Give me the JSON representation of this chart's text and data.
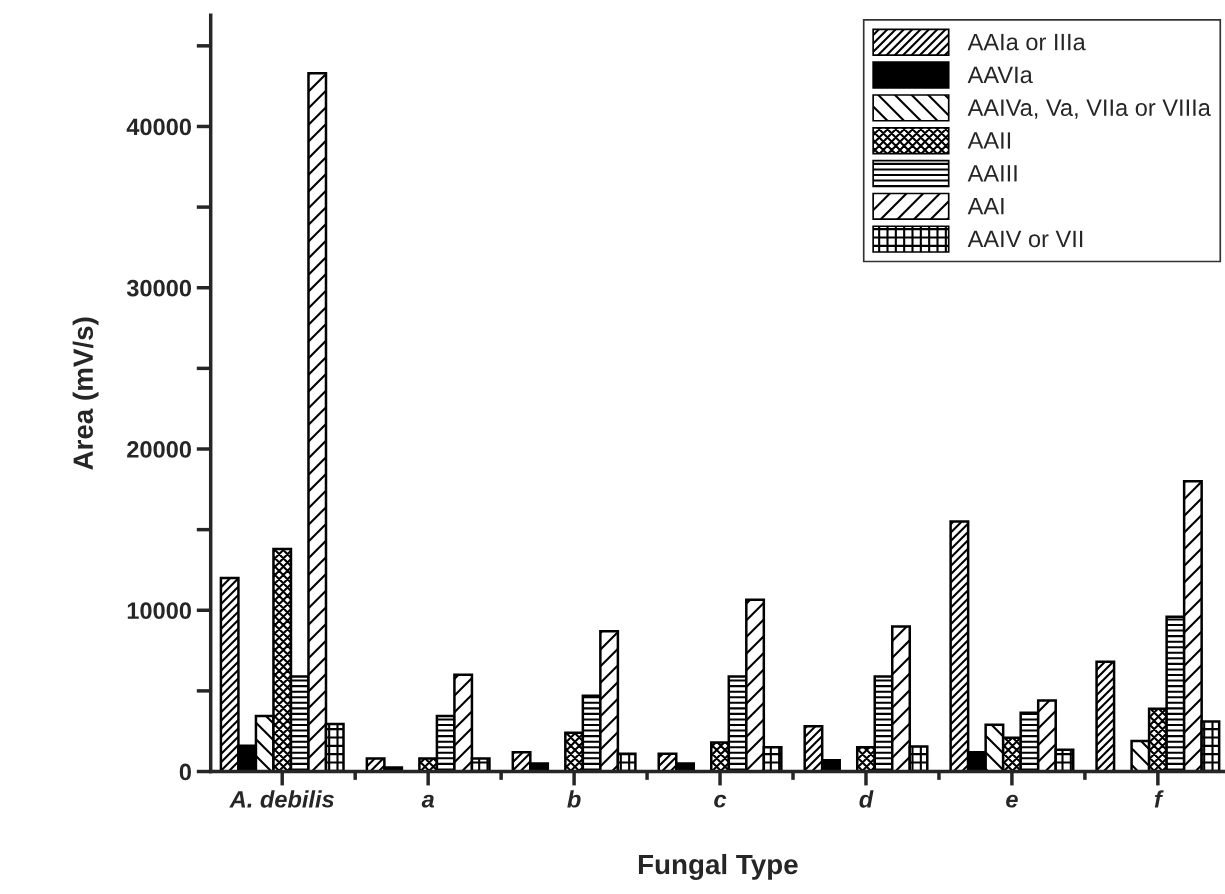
{
  "chart_data": {
    "type": "bar",
    "xlabel": "Fungal Type",
    "ylabel": "Area (mV/s)",
    "categories": [
      "A. debilis",
      "a",
      "b",
      "c",
      "d",
      "e",
      "f"
    ],
    "series": [
      {
        "name": "AAIa or IIIa",
        "color": "#000000",
        "values": [
          12000,
          800,
          1200,
          1100,
          2800,
          15500,
          6800
        ]
      },
      {
        "name": "AAVIa",
        "color": "#000000",
        "values": [
          1600,
          250,
          500,
          500,
          700,
          1200,
          null
        ]
      },
      {
        "name": "AAIVa, Va, VIIa or VIIIa",
        "color": "#000000",
        "values": [
          3450,
          null,
          null,
          null,
          null,
          2900,
          1900
        ]
      },
      {
        "name": "AAII",
        "color": "#000000",
        "values": [
          13800,
          800,
          2400,
          1800,
          1500,
          2100,
          3900
        ]
      },
      {
        "name": "AAIII",
        "color": "#000000",
        "values": [
          5900,
          3450,
          4700,
          5900,
          5900,
          3650,
          9600
        ]
      },
      {
        "name": "AAI",
        "color": "#000000",
        "values": [
          43300,
          6000,
          8700,
          10650,
          9000,
          4400,
          18000
        ]
      },
      {
        "name": "AAIV or VII",
        "color": "#000000",
        "values": [
          2950,
          800,
          1100,
          1500,
          1550,
          1350,
          3100
        ]
      }
    ],
    "ylim": [
      0,
      46900
    ],
    "yticks": [
      0,
      {
        "value": 5000,
        "label": null
      },
      10000,
      {
        "value": 15000,
        "label": null
      },
      20000,
      {
        "value": 25000,
        "label": null
      },
      30000,
      {
        "value": 35000,
        "label": null
      },
      40000,
      {
        "value": 45000,
        "label": null
      }
    ],
    "grid": false,
    "legend": "top right"
  }
}
